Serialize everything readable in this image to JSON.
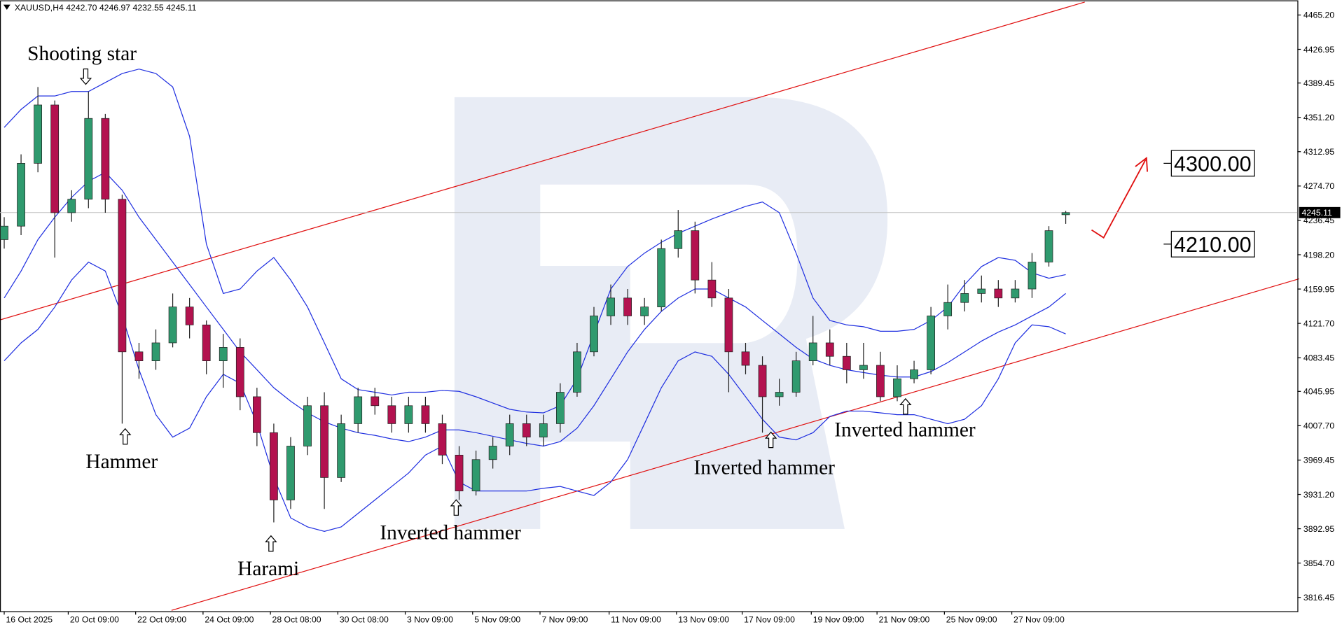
{
  "chart_data": {
    "type": "candlestick",
    "header": "XAUUSD,H4  4242.70 4246.97 4232.55 4245.11",
    "up_color": "#2f9a6e",
    "down_color": "#b3124f",
    "band_color": "#1f2fe0",
    "grid": false,
    "x": [
      0,
      1,
      2,
      3,
      4,
      5,
      6,
      7,
      8,
      9,
      10,
      11,
      12,
      13,
      14,
      15,
      16,
      17,
      18,
      19,
      20,
      21,
      22,
      23,
      24,
      25,
      26,
      27,
      28,
      29,
      30,
      31,
      32,
      33,
      34,
      35,
      36,
      37,
      38,
      39,
      40,
      41,
      42,
      43,
      44,
      45,
      46,
      47,
      48,
      49,
      50,
      51,
      52,
      53,
      54,
      55,
      56,
      57,
      58,
      59,
      60,
      61,
      62,
      63
    ],
    "open": [
      4215,
      4230,
      4300,
      4365,
      4245,
      4260,
      4350,
      4260,
      4090,
      4080,
      4100,
      4140,
      4120,
      4080,
      4095,
      4040,
      4000,
      3925,
      3985,
      4030,
      3950,
      4010,
      4040,
      4030,
      4010,
      4030,
      4010,
      3975,
      3935,
      3970,
      3985,
      4010,
      3995,
      4010,
      4045,
      4090,
      4130,
      4150,
      4130,
      4140,
      4205,
      4225,
      4170,
      4150,
      4090,
      4075,
      4040,
      4045,
      4080,
      4100,
      4085,
      4070,
      4075,
      4040,
      4060,
      4070,
      4130,
      4145,
      4155,
      4160,
      4150,
      4160,
      4190,
      4242.7
    ],
    "high": [
      4240,
      4310,
      4385,
      4370,
      4270,
      4380,
      4355,
      4265,
      4100,
      4115,
      4155,
      4150,
      4125,
      4110,
      4105,
      4050,
      4010,
      3995,
      4040,
      4045,
      4020,
      4050,
      4050,
      4040,
      4040,
      4040,
      4020,
      3985,
      3980,
      3995,
      4020,
      4020,
      4020,
      4055,
      4100,
      4140,
      4165,
      4160,
      4150,
      4215,
      4248,
      4235,
      4190,
      4160,
      4100,
      4085,
      4060,
      4090,
      4130,
      4115,
      4100,
      4100,
      4090,
      4075,
      4080,
      4140,
      4165,
      4170,
      4175,
      4170,
      4170,
      4200,
      4230,
      4246.97
    ],
    "low": [
      4205,
      4220,
      4290,
      4195,
      4235,
      4250,
      4245,
      4010,
      4060,
      4070,
      4095,
      4105,
      4065,
      4050,
      4025,
      3985,
      3900,
      3915,
      3975,
      3915,
      3945,
      4000,
      4020,
      4000,
      4000,
      4000,
      3965,
      3925,
      3930,
      3960,
      3975,
      3985,
      3985,
      4000,
      4040,
      4085,
      4120,
      4120,
      4120,
      4135,
      4195,
      4155,
      4140,
      4045,
      4065,
      4000,
      4030,
      4040,
      4075,
      4075,
      4055,
      4060,
      4035,
      4035,
      4055,
      4065,
      4115,
      4135,
      4145,
      4140,
      4145,
      4150,
      4185,
      4232.55
    ],
    "close": [
      4230,
      4300,
      4365,
      4245,
      4260,
      4350,
      4260,
      4090,
      4080,
      4100,
      4140,
      4120,
      4080,
      4095,
      4040,
      4000,
      3925,
      3985,
      4030,
      3950,
      4010,
      4040,
      4030,
      4010,
      4030,
      4010,
      3975,
      3935,
      3970,
      3985,
      4010,
      3995,
      4010,
      4045,
      4090,
      4130,
      4150,
      4130,
      4140,
      4205,
      4225,
      4170,
      4150,
      4090,
      4075,
      4040,
      4045,
      4080,
      4100,
      4085,
      4070,
      4075,
      4040,
      4060,
      4070,
      4130,
      4145,
      4155,
      4160,
      4150,
      4160,
      4190,
      4225,
      4245.11
    ],
    "bands": [
      {
        "values": [
          4340,
          4360,
          4375,
          4375,
          4380,
          4380,
          4390,
          4400,
          4405,
          4400,
          4385,
          4330,
          4210,
          4155,
          4160,
          4180,
          4195,
          4170,
          4140,
          4100,
          4060,
          4048,
          4045,
          4042,
          4045,
          4045,
          4047,
          4046,
          4040,
          4033,
          4026,
          4023,
          4022,
          4030,
          4060,
          4110,
          4160,
          4185,
          4200,
          4212,
          4222,
          4230,
          4238,
          4245,
          4252,
          4257,
          4245,
          4200,
          4150,
          4125,
          4120,
          4118,
          4113,
          4113,
          4115,
          4125,
          4140,
          4165,
          4185,
          4195,
          4192,
          4178,
          4172,
          4176
        ]
      },
      {
        "values": [
          4150,
          4180,
          4215,
          4240,
          4262,
          4280,
          4290,
          4270,
          4240,
          4215,
          4190,
          4165,
          4140,
          4115,
          4090,
          4070,
          4050,
          4035,
          4022,
          4012,
          4005,
          4000,
          3997,
          3993,
          3990,
          3995,
          4003,
          4003,
          4000,
          3996,
          3992,
          3988,
          3985,
          3990,
          4005,
          4030,
          4060,
          4090,
          4115,
          4135,
          4150,
          4160,
          4160,
          4150,
          4140,
          4125,
          4110,
          4095,
          4082,
          4075,
          4070,
          4067,
          4064,
          4062,
          4062,
          4068,
          4078,
          4090,
          4102,
          4112,
          4120,
          4130,
          4140,
          4155
        ]
      },
      {
        "values": [
          4080,
          4100,
          4115,
          4140,
          4170,
          4190,
          4180,
          4130,
          4070,
          4020,
          3995,
          4005,
          4040,
          4065,
          4055,
          4010,
          3950,
          3905,
          3895,
          3890,
          3895,
          3910,
          3925,
          3940,
          3955,
          3975,
          3985,
          3945,
          3935,
          3935,
          3935,
          3935,
          3938,
          3940,
          3935,
          3930,
          3945,
          3970,
          4010,
          4050,
          4080,
          4090,
          4085,
          4065,
          4040,
          4015,
          3995,
          3992,
          4000,
          4018,
          4024,
          4024,
          4022,
          4020,
          4020,
          4015,
          4010,
          4015,
          4030,
          4060,
          4100,
          4120,
          4118,
          4110
        ]
      }
    ],
    "xlim": [
      -0.25,
      76.75
    ],
    "ylim": [
      3801.1,
      4481.5
    ],
    "xticks": [
      {
        "value": 0,
        "label": "16 Oct 2025"
      },
      {
        "value": 3.8,
        "label": "20 Oct 09:00"
      },
      {
        "value": 7.8,
        "label": "22 Oct 09:00"
      },
      {
        "value": 11.8,
        "label": "24 Oct 09:00"
      },
      {
        "value": 15.8,
        "label": "28 Oct 08:00"
      },
      {
        "value": 19.8,
        "label": "30 Oct 08:00"
      },
      {
        "value": 23.8,
        "label": "3 Nov 09:00"
      },
      {
        "value": 27.8,
        "label": "5 Nov 09:00"
      },
      {
        "value": 31.8,
        "label": "7 Nov 09:00"
      },
      {
        "value": 35.9,
        "label": "11 Nov 09:00"
      },
      {
        "value": 39.9,
        "label": "13 Nov 09:00"
      },
      {
        "value": 43.8,
        "label": "17 Nov 09:00"
      },
      {
        "value": 47.9,
        "label": "19 Nov 09:00"
      },
      {
        "value": 51.8,
        "label": "21 Nov 09:00"
      },
      {
        "value": 55.8,
        "label": "25 Nov 09:00"
      },
      {
        "value": 59.8,
        "label": "27 Nov 09:00"
      }
    ],
    "yticks": [
      {
        "value": 4465.2,
        "label": "4465.20"
      },
      {
        "value": 4426.95,
        "label": "4426.95"
      },
      {
        "value": 4389.45,
        "label": "4389.45"
      },
      {
        "value": 4351.2,
        "label": "4351.20"
      },
      {
        "value": 4312.95,
        "label": "4312.95"
      },
      {
        "value": 4274.7,
        "label": "4274.70"
      },
      {
        "value": 4236.45,
        "label": "4236.45"
      },
      {
        "value": 4198.2,
        "label": "4198.20"
      },
      {
        "value": 4159.95,
        "label": "4159.95"
      },
      {
        "value": 4121.7,
        "label": "4121.70"
      },
      {
        "value": 4083.45,
        "label": "4083.45"
      },
      {
        "value": 4045.95,
        "label": "4045.95"
      },
      {
        "value": 4007.7,
        "label": "4007.70"
      },
      {
        "value": 3969.45,
        "label": "3969.45"
      },
      {
        "value": 3931.2,
        "label": "3931.20"
      },
      {
        "value": 3892.95,
        "label": "3892.95"
      },
      {
        "value": 3854.7,
        "label": "3854.70"
      },
      {
        "value": 3816.45,
        "label": "3816.45"
      }
    ],
    "last_price": 4245.11,
    "levels": [
      {
        "value": 4300,
        "label": "4300.00"
      },
      {
        "value": 4210,
        "label": "4210.00"
      }
    ],
    "annotations": [
      "Shooting star",
      "Hammer",
      "Harami",
      "Inverted hammer",
      "Inverted hammer",
      "Inverted hammer"
    ]
  }
}
